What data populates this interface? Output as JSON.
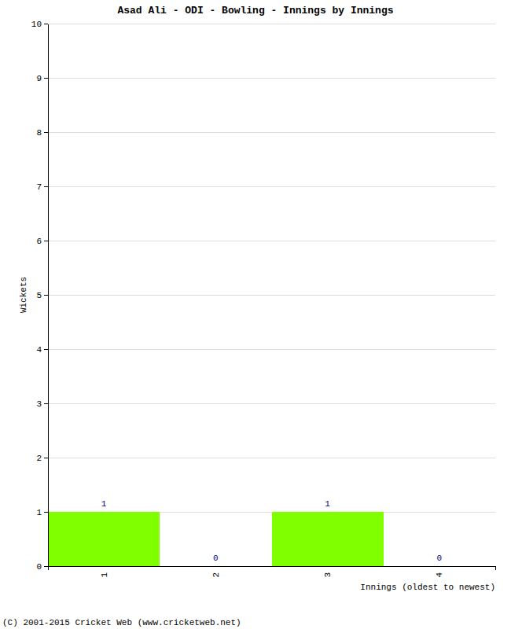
{
  "chart_data": {
    "type": "bar",
    "title": "Asad Ali - ODI - Bowling - Innings by Innings",
    "categories": [
      "1",
      "2",
      "3",
      "4"
    ],
    "values": [
      1,
      0,
      1,
      0
    ],
    "color": "#7fff00",
    "x_label": "Innings (oldest to newest)",
    "y_label": "Wickets",
    "ylim": [
      0,
      10
    ],
    "yticks": [
      0,
      1,
      2,
      3,
      4,
      5,
      6,
      7,
      8,
      9,
      10
    ],
    "grid": true,
    "data_labels": true,
    "annotations": [
      "(C) 2001-2015 Cricket Web (www.cricketweb.net)"
    ]
  }
}
